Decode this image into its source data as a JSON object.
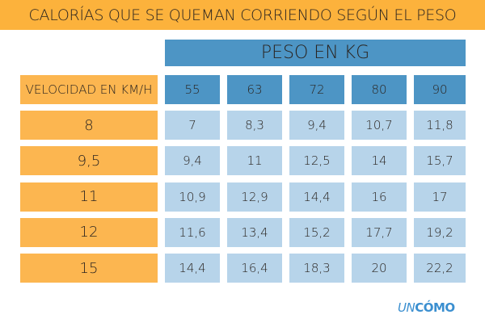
{
  "title": "CALORÍAS QUE SE QUEMAN CORRIENDO SEGÚN EL PESO",
  "weight_header": "PESO EN KG",
  "speed_header": "VELOCIDAD EN KM/H",
  "weights": [
    "55",
    "63",
    "72",
    "80",
    "90"
  ],
  "rows": [
    {
      "speed": "8",
      "values": [
        "7",
        "8,3",
        "9,4",
        "10,7",
        "11,8"
      ]
    },
    {
      "speed": "9,5",
      "values": [
        "9,4",
        "11",
        "12,5",
        "14",
        "15,7"
      ]
    },
    {
      "speed": "11",
      "values": [
        "10,9",
        "12,9",
        "14,4",
        "16",
        "17"
      ]
    },
    {
      "speed": "12",
      "values": [
        "11,6",
        "13,4",
        "15,2",
        "17,7",
        "19,2"
      ]
    },
    {
      "speed": "15",
      "values": [
        "14,4",
        "16,4",
        "18,3",
        "20",
        "22,2"
      ]
    }
  ],
  "logo": {
    "part1": "UN",
    "part2": "CÓMO"
  },
  "colors": {
    "orange": "#FCB23C",
    "dark_blue": "#4D95C5",
    "light_blue": "#B7D4EA"
  }
}
